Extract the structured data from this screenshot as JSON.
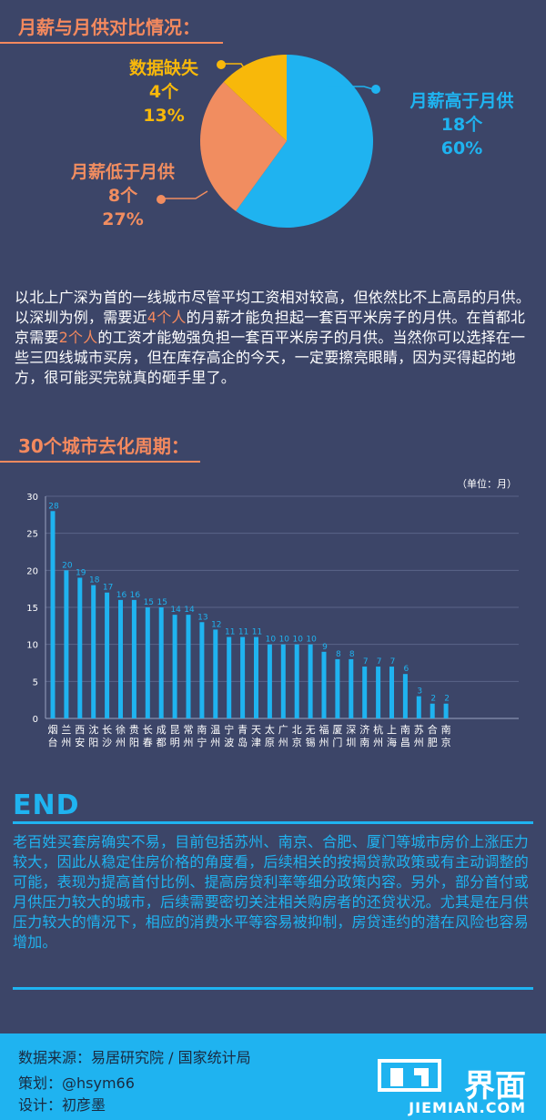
{
  "section1": {
    "title": "月薪与月供对比情况：",
    "pie": [
      {
        "label": "月薪高于月供",
        "count": "18个",
        "pct": "60%",
        "value": 60,
        "color": "#1fb3f0"
      },
      {
        "label": "月薪低于月供",
        "count": "8个",
        "pct": "27%",
        "value": 27,
        "color": "#f18d60"
      },
      {
        "label": "数据缺失",
        "count": "4个",
        "pct": "13%",
        "value": 13,
        "color": "#f8b80a"
      }
    ],
    "paragraph": {
      "p1": "以北上广深为首的一线城市尽管平均工资相对较高，但依然比不上高昂的月供。以深圳为例，需要近",
      "h1": "4个人",
      "p2": "的月薪才能负担起一套百平米房子的月供。在首都北京需要",
      "h2": "2个人",
      "p3": "的工资才能勉强负担一套百平米房子的月供。当然你可以选择在一些三四线城市买房，但在库存高企的今天，一定要擦亮眼睛，因为买得起的地方，很可能买完就真的砸手里了。"
    }
  },
  "section2": {
    "title": "30个城市去化周期："
  },
  "chart_data": {
    "type": "bar",
    "unit_label": "（单位：月）",
    "ylim": [
      0,
      30
    ],
    "yticks": [
      0,
      5,
      10,
      15,
      20,
      25,
      30
    ],
    "grid": true,
    "bar_color": "#1fb3f0",
    "categories": [
      "烟台",
      "兰州",
      "西安",
      "沈阳",
      "长沙",
      "徐州",
      "贵阳",
      "长春",
      "成都",
      "昆明",
      "常州",
      "南宁",
      "温州",
      "宁波",
      "青岛",
      "天津",
      "太原",
      "广州",
      "北京",
      "无锡",
      "福州",
      "厦门",
      "深圳",
      "济南",
      "杭州",
      "上海",
      "南昌",
      "苏州",
      "合肥",
      "南京"
    ],
    "values": [
      28,
      20,
      19,
      18,
      17,
      16,
      16,
      15,
      15,
      14,
      14,
      13,
      12,
      11,
      11,
      11,
      10,
      10,
      10,
      10,
      9,
      8,
      8,
      7,
      7,
      7,
      6,
      3,
      2,
      2
    ]
  },
  "end": {
    "title": "END",
    "paragraph": "老百姓买套房确实不易，目前包括苏州、南京、合肥、厦门等城市房价上涨压力较大，因此从稳定住房价格的角度看，后续相关的按揭贷款政策或有主动调整的可能，表现为提高首付比例、提高房贷利率等细分政策内容。另外，部分首付或月供压力较大的城市，后续需要密切关注相关购房者的还贷状况。尤其是在月供压力较大的情况下，相应的消费水平等容易被抑制，房贷违约的潜在风险也容易增加。"
  },
  "footer": {
    "source": "数据来源：易居研究院 / 国家统计局",
    "planner": "策划：@hsym66",
    "designer": "设计：初彦墨",
    "logo_text": "界面",
    "logo_sub": "JIEMIAN.COM"
  }
}
